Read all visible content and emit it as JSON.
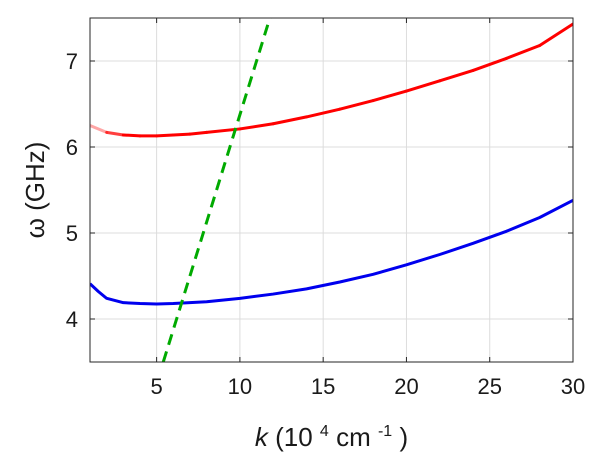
{
  "chart_data": {
    "type": "line",
    "title": "",
    "xlabel": {
      "var": "k",
      "unit_prefix": " (10",
      "exp": "4",
      "unit_mid": " cm",
      "unit_exp": "-1",
      "unit_suffix": ")"
    },
    "ylabel": "ω (GHz)",
    "xlim": [
      1,
      30
    ],
    "ylim": [
      3.5,
      7.5
    ],
    "xticks": [
      5,
      10,
      15,
      20,
      25,
      30
    ],
    "yticks": [
      4,
      5,
      6,
      7
    ],
    "grid": true,
    "series": [
      {
        "color": "#ff0000",
        "style": "solid",
        "fade_start": true,
        "x": [
          1,
          2,
          3,
          4,
          5,
          6,
          7,
          8,
          10,
          12,
          14,
          16,
          18,
          20,
          22,
          24,
          26,
          28,
          30
        ],
        "y": [
          6.25,
          6.17,
          6.14,
          6.13,
          6.13,
          6.14,
          6.15,
          6.17,
          6.21,
          6.27,
          6.35,
          6.44,
          6.54,
          6.65,
          6.77,
          6.89,
          7.03,
          7.18,
          7.43
        ]
      },
      {
        "color": "#0000ee",
        "style": "solid",
        "x": [
          1,
          1.5,
          2,
          3,
          4,
          5,
          6,
          7,
          8,
          10,
          12,
          14,
          16,
          18,
          20,
          22,
          24,
          26,
          28,
          30
        ],
        "y": [
          4.41,
          4.32,
          4.24,
          4.19,
          4.18,
          4.175,
          4.18,
          4.19,
          4.2,
          4.24,
          4.29,
          4.35,
          4.43,
          4.52,
          4.63,
          4.75,
          4.88,
          5.02,
          5.18,
          5.38
        ]
      },
      {
        "color": "#00aa00",
        "style": "dashed",
        "x": [
          5.4,
          11.8
        ],
        "y": [
          3.5,
          7.5
        ]
      }
    ]
  }
}
